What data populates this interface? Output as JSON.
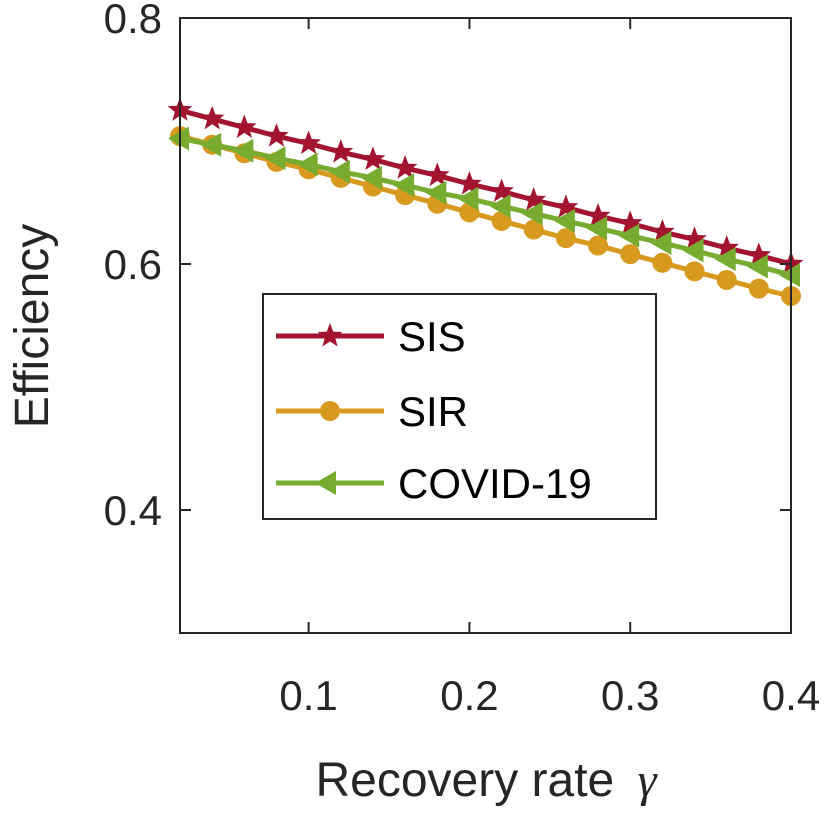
{
  "chart_data": {
    "type": "line",
    "xlabel": "Recovery rate",
    "xlabel_symbol": "γ",
    "ylabel": "Efficiency",
    "xlim": [
      0.02,
      0.4
    ],
    "ylim": [
      0.3,
      0.8
    ],
    "xticks": [
      0.1,
      0.2,
      0.3,
      0.4
    ],
    "xtick_labels": [
      "0.1",
      "0.2",
      "0.3",
      "0.4"
    ],
    "yticks": [
      0.4,
      0.6,
      0.8
    ],
    "ytick_labels": [
      "0.4",
      "0.6",
      "0.8"
    ],
    "grid": false,
    "legend_position": "center",
    "x": [
      0.02,
      0.04,
      0.06,
      0.08,
      0.1,
      0.12,
      0.14,
      0.16,
      0.18,
      0.2,
      0.22,
      0.24,
      0.26,
      0.28,
      0.3,
      0.32,
      0.34,
      0.36,
      0.38,
      0.4
    ],
    "series": [
      {
        "name": "SIS",
        "color": "#A2142F",
        "marker": "star",
        "values": [
          0.725,
          0.718,
          0.711,
          0.704,
          0.698,
          0.691,
          0.685,
          0.678,
          0.672,
          0.665,
          0.659,
          0.652,
          0.646,
          0.639,
          0.633,
          0.626,
          0.62,
          0.613,
          0.607,
          0.6
        ]
      },
      {
        "name": "SIR",
        "color": "#D89A1E",
        "marker": "circle",
        "values": [
          0.704,
          0.697,
          0.69,
          0.683,
          0.677,
          0.67,
          0.663,
          0.656,
          0.649,
          0.642,
          0.635,
          0.628,
          0.621,
          0.615,
          0.608,
          0.601,
          0.594,
          0.587,
          0.58,
          0.574
        ]
      },
      {
        "name": "COVID-19",
        "color": "#77AC30",
        "marker": "triangle-left",
        "values": [
          0.702,
          0.697,
          0.692,
          0.686,
          0.681,
          0.675,
          0.67,
          0.664,
          0.658,
          0.653,
          0.647,
          0.641,
          0.635,
          0.629,
          0.623,
          0.617,
          0.611,
          0.604,
          0.598,
          0.591
        ]
      }
    ]
  }
}
